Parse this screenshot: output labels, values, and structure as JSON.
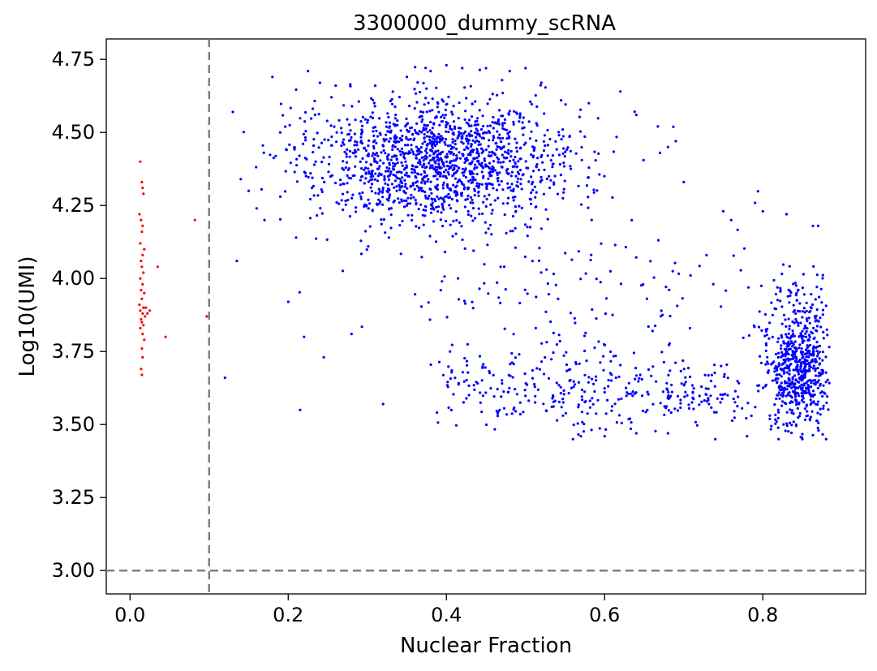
{
  "chart_data": {
    "type": "scatter",
    "title": "3300000_dummy_scRNA",
    "xlabel": "Nuclear Fraction",
    "ylabel": "Log10(UMI)",
    "xlim": [
      -0.03,
      0.93
    ],
    "ylim": [
      2.92,
      4.82
    ],
    "xticks": [
      0.0,
      0.2,
      0.4,
      0.6,
      0.8
    ],
    "xtick_labels": [
      "0.0",
      "0.2",
      "0.4",
      "0.6",
      "0.8"
    ],
    "yticks": [
      3.0,
      3.25,
      3.5,
      3.75,
      4.0,
      4.25,
      4.5,
      4.75
    ],
    "ytick_labels": [
      "3.00",
      "3.25",
      "3.50",
      "3.75",
      "4.00",
      "4.25",
      "4.50",
      "4.75"
    ],
    "grid": false,
    "thresholds": {
      "nuclear_fraction": 0.1,
      "log10_umi": 3.0
    },
    "colors": {
      "pass": "#0000ff",
      "fail": "#ff0000",
      "threshold": "#808080"
    },
    "series": [
      {
        "color": "#ff0000",
        "points": [
          [
            0.013,
            4.4
          ],
          [
            0.015,
            4.33
          ],
          [
            0.016,
            4.31
          ],
          [
            0.017,
            4.29
          ],
          [
            0.012,
            4.22
          ],
          [
            0.014,
            4.2
          ],
          [
            0.016,
            4.18
          ],
          [
            0.015,
            4.16
          ],
          [
            0.013,
            4.12
          ],
          [
            0.018,
            4.1
          ],
          [
            0.016,
            4.08
          ],
          [
            0.014,
            4.06
          ],
          [
            0.015,
            4.04
          ],
          [
            0.017,
            4.02
          ],
          [
            0.013,
            4.0
          ],
          [
            0.016,
            3.98
          ],
          [
            0.014,
            3.96
          ],
          [
            0.018,
            3.95
          ],
          [
            0.015,
            3.93
          ],
          [
            0.012,
            3.91
          ],
          [
            0.017,
            3.9
          ],
          [
            0.013,
            3.89
          ],
          [
            0.016,
            3.88
          ],
          [
            0.019,
            3.87
          ],
          [
            0.014,
            3.86
          ],
          [
            0.015,
            3.85
          ],
          [
            0.017,
            3.84
          ],
          [
            0.013,
            3.83
          ],
          [
            0.016,
            3.81
          ],
          [
            0.018,
            3.79
          ],
          [
            0.015,
            3.76
          ],
          [
            0.016,
            3.73
          ],
          [
            0.014,
            3.69
          ],
          [
            0.015,
            3.67
          ],
          [
            0.02,
            3.9
          ],
          [
            0.022,
            3.88
          ],
          [
            0.025,
            3.89
          ],
          [
            0.035,
            4.04
          ],
          [
            0.045,
            3.8
          ],
          [
            0.082,
            4.2
          ],
          [
            0.097,
            3.87
          ]
        ]
      },
      {
        "color": "#0000ff",
        "points": [
          [
            0.12,
            3.66
          ],
          [
            0.13,
            4.57
          ],
          [
            0.135,
            4.06
          ],
          [
            0.14,
            4.34
          ],
          [
            0.15,
            4.3
          ],
          [
            0.16,
            4.24
          ],
          [
            0.17,
            4.2
          ],
          [
            0.18,
            4.69
          ],
          [
            0.19,
            4.28
          ],
          [
            0.2,
            3.92
          ],
          [
            0.21,
            4.14
          ],
          [
            0.215,
            3.55
          ],
          [
            0.22,
            3.8
          ],
          [
            0.225,
            4.71
          ],
          [
            0.24,
            4.67
          ],
          [
            0.245,
            3.73
          ],
          [
            0.26,
            4.66
          ],
          [
            0.28,
            3.81
          ],
          [
            0.31,
            4.66
          ],
          [
            0.32,
            3.57
          ],
          [
            0.35,
            4.69
          ],
          [
            0.38,
            4.71
          ],
          [
            0.4,
            4.73
          ],
          [
            0.42,
            4.72
          ],
          [
            0.45,
            4.72
          ],
          [
            0.48,
            4.71
          ],
          [
            0.5,
            4.72
          ],
          [
            0.52,
            4.67
          ],
          [
            0.545,
            4.61
          ],
          [
            0.58,
            4.6
          ],
          [
            0.62,
            4.64
          ],
          [
            0.64,
            4.56
          ],
          [
            0.67,
            4.43
          ],
          [
            0.68,
            4.45
          ],
          [
            0.69,
            4.47
          ],
          [
            0.7,
            4.33
          ],
          [
            0.75,
            4.23
          ],
          [
            0.76,
            4.2
          ],
          [
            0.8,
            4.23
          ],
          [
            0.83,
            4.22
          ],
          [
            0.87,
            4.18
          ],
          [
            0.56,
            3.45
          ],
          [
            0.57,
            3.46
          ],
          [
            0.6,
            3.46
          ],
          [
            0.64,
            3.47
          ],
          [
            0.68,
            3.47
          ],
          [
            0.74,
            3.45
          ],
          [
            0.78,
            3.46
          ],
          [
            0.82,
            3.45
          ],
          [
            0.85,
            3.45
          ],
          [
            0.88,
            3.45
          ]
        ]
      }
    ]
  }
}
